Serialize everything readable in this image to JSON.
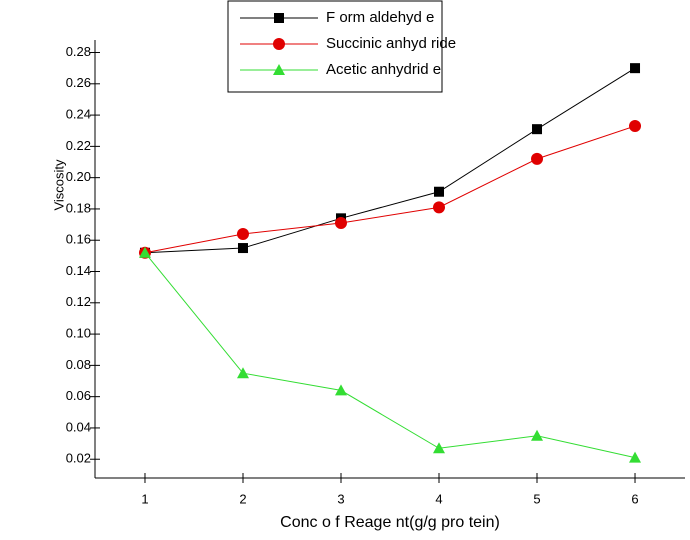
{
  "chart_data": {
    "type": "line",
    "x_label": "Conc o f Reage nt(g/g pro tein)",
    "y_label": "Viscosity",
    "x": [
      1,
      2,
      3,
      4,
      5,
      6
    ],
    "xlim": [
      0.49,
      6.51
    ],
    "xticks": [
      1,
      2,
      3,
      4,
      5,
      6
    ],
    "ylim": [
      0.008,
      0.288
    ],
    "yticks": [
      {
        "value": 0.02,
        "label": "0.02"
      },
      {
        "value": 0.04,
        "label": "0.04"
      },
      {
        "value": 0.06,
        "label": "0.06"
      },
      {
        "value": 0.08,
        "label": "0.08"
      },
      {
        "value": 0.1,
        "label": "0.10"
      },
      {
        "value": 0.12,
        "label": "0.12"
      },
      {
        "value": 0.14,
        "label": "0.14"
      },
      {
        "value": 0.16,
        "label": "0.16"
      },
      {
        "value": 0.18,
        "label": "0.18"
      },
      {
        "value": 0.2,
        "label": "0.20"
      },
      {
        "value": 0.22,
        "label": "0.22"
      },
      {
        "value": 0.24,
        "label": "0.24"
      },
      {
        "value": 0.26,
        "label": "0.26"
      },
      {
        "value": 0.28,
        "label": "0.28"
      }
    ],
    "legend": "top-center",
    "series": [
      {
        "name": "F orm aldehyd e",
        "color": "#000000",
        "marker": "square",
        "values": [
          0.152,
          0.155,
          0.174,
          0.191,
          0.231,
          0.27
        ]
      },
      {
        "name": "Succinic anhyd ride",
        "color": "#e00000",
        "marker": "circle",
        "values": [
          0.152,
          0.164,
          0.171,
          0.181,
          0.212,
          0.233
        ]
      },
      {
        "name": "Acetic anhydrid e",
        "color": "#33dd33",
        "marker": "triangle",
        "values": [
          0.152,
          0.075,
          0.064,
          0.027,
          0.035,
          0.021
        ]
      }
    ]
  }
}
